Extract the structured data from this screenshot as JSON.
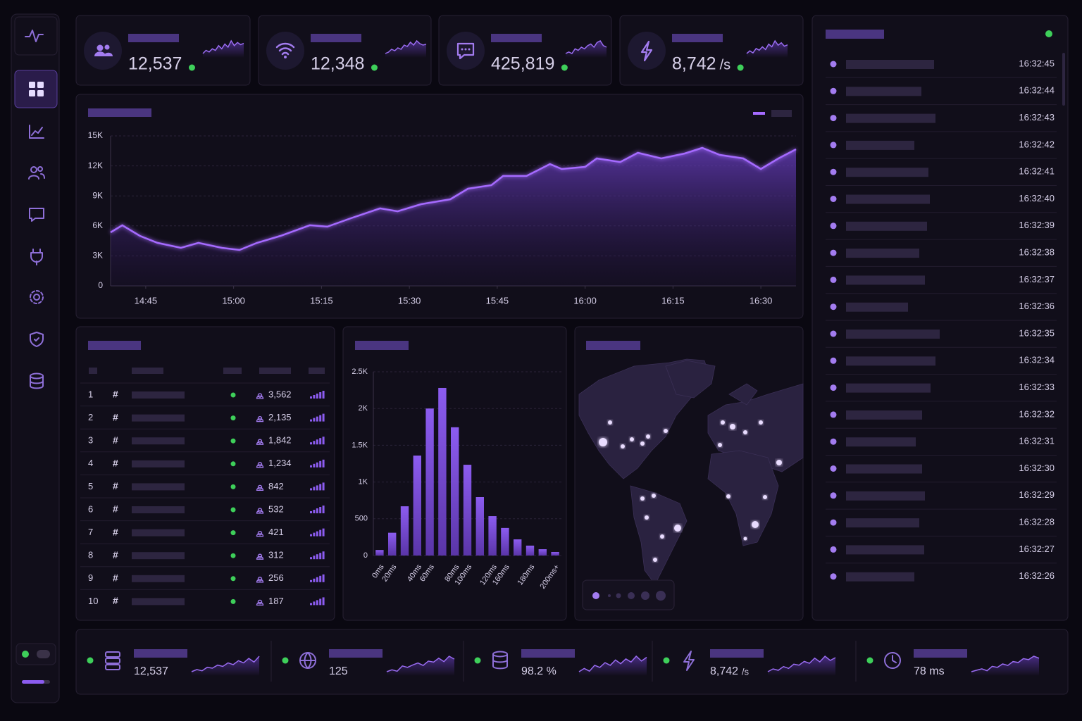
{
  "kpis": [
    {
      "value": "12,537",
      "spark": [
        4,
        5,
        4.5,
        5.5,
        5,
        6.5,
        5.5,
        7,
        6,
        8,
        6.5,
        7.5,
        6.8,
        7.2
      ]
    },
    {
      "value": "12,348",
      "spark": [
        3.5,
        4,
        5,
        4.5,
        5.5,
        5,
        6.5,
        6,
        7.5,
        6.5,
        8,
        7,
        6.5,
        6.8
      ]
    },
    {
      "value": "425,819",
      "spark": [
        4,
        4.5,
        4,
        5.5,
        5,
        6,
        5.5,
        6.5,
        7,
        6,
        7.5,
        8,
        6.5,
        6
      ]
    },
    {
      "value": "8,742",
      "unit": "/s",
      "spark": [
        4,
        4.8,
        4.2,
        5.5,
        5,
        6,
        5.2,
        6.8,
        6,
        7.8,
        6.5,
        7.2,
        6.2,
        6.6
      ]
    }
  ],
  "chart_data": [
    {
      "type": "area",
      "x": [
        879,
        881,
        884,
        887,
        891,
        894,
        898,
        901,
        904,
        908,
        913,
        916,
        920,
        925,
        928,
        932,
        937,
        940,
        944,
        946,
        950,
        954,
        956,
        960,
        962,
        966,
        969,
        973,
        977,
        980,
        983,
        987,
        990,
        993,
        996
      ],
      "series": [
        {
          "color": "#a56bff",
          "values": [
            5350,
            6060,
            5000,
            4300,
            3800,
            4300,
            3800,
            3590,
            4300,
            5000,
            6060,
            5920,
            6760,
            7750,
            7460,
            8170,
            8660,
            9720,
            10070,
            10990,
            10990,
            12180,
            11690,
            11900,
            12750,
            12390,
            13310,
            12750,
            13240,
            13800,
            13100,
            12750,
            11690,
            12750,
            13660
          ]
        }
      ],
      "xlim": [
        879,
        996
      ],
      "ylim": [
        0,
        15000
      ],
      "xticks": [
        {
          "value": 885,
          "label": "14:45"
        },
        {
          "value": 900,
          "label": "15:00"
        },
        {
          "value": 915,
          "label": "15:15"
        },
        {
          "value": 930,
          "label": "15:30"
        },
        {
          "value": 945,
          "label": "15:45"
        },
        {
          "value": 960,
          "label": "16:00"
        },
        {
          "value": 975,
          "label": "16:15"
        },
        {
          "value": 990,
          "label": "16:30"
        }
      ],
      "yticks": [
        0,
        {
          "value": 3000,
          "label": "3K"
        },
        {
          "value": 6000,
          "label": "6K"
        },
        {
          "value": 9000,
          "label": "9K"
        },
        {
          "value": 12000,
          "label": "12K"
        },
        {
          "value": 15000,
          "label": "15K"
        }
      ],
      "grid": true
    },
    {
      "type": "bar",
      "categories": [
        "0ms",
        "20ms",
        null,
        "40ms",
        "60ms",
        null,
        "80ms",
        "100ms",
        null,
        "120ms",
        "160ms",
        null,
        "180ms",
        null,
        "200ms+"
      ],
      "values": [
        75,
        310,
        670,
        1360,
        2000,
        2280,
        1745,
        1235,
        795,
        536,
        375,
        220,
        135,
        86,
        48
      ],
      "color": "#7d4fdb",
      "ylim": [
        0,
        2500
      ],
      "yticks": [
        0,
        500,
        {
          "value": 1000,
          "label": "1K"
        },
        {
          "value": 1500,
          "label": "1.5K"
        },
        {
          "value": 2000,
          "label": "2K"
        },
        {
          "value": 2500,
          "label": "2.5K"
        }
      ],
      "grid": true
    }
  ],
  "top_servers": {
    "rows": [
      {
        "rank": 1,
        "symbol": "#",
        "users": "3,562"
      },
      {
        "rank": 2,
        "symbol": "#",
        "users": "2,135"
      },
      {
        "rank": 3,
        "symbol": "#",
        "users": "1,842"
      },
      {
        "rank": 4,
        "symbol": "#",
        "users": "1,234"
      },
      {
        "rank": 5,
        "symbol": "#",
        "users": "842"
      },
      {
        "rank": 6,
        "symbol": "#",
        "users": "532"
      },
      {
        "rank": 7,
        "symbol": "#",
        "users": "421"
      },
      {
        "rank": 8,
        "symbol": "#",
        "users": "312"
      },
      {
        "rank": 9,
        "symbol": "#",
        "users": "256"
      },
      {
        "rank": 10,
        "symbol": "#",
        "users": "187"
      }
    ]
  },
  "log": {
    "times": [
      "16:32:45",
      "16:32:44",
      "16:32:43",
      "16:32:42",
      "16:32:41",
      "16:32:40",
      "16:32:39",
      "16:32:38",
      "16:32:37",
      "16:32:36",
      "16:32:35",
      "16:32:34",
      "16:32:33",
      "16:32:32",
      "16:32:31",
      "16:32:30",
      "16:32:29",
      "16:32:28",
      "16:32:27",
      "16:32:26"
    ]
  },
  "stats": [
    {
      "value": "12,537",
      "spark": [
        3,
        3.5,
        3.2,
        4,
        3.8,
        4.5,
        4.2,
        5,
        4.6,
        5.5,
        5,
        6,
        5.2,
        6.5
      ]
    },
    {
      "value": "125",
      "spark": [
        3,
        3.4,
        3.1,
        4.2,
        3.9,
        4.4,
        4.8,
        4.3,
        5.2,
        5,
        5.8,
        5.1,
        6.2,
        5.6
      ]
    },
    {
      "value": "98.2 %",
      "spark": [
        3.2,
        3.8,
        3.3,
        4.4,
        4,
        4.9,
        4.4,
        5.4,
        4.7,
        5.6,
        5,
        6.1,
        5.2,
        5.9
      ]
    },
    {
      "value": "8,742",
      "unit": "/s",
      "spark": [
        3,
        3.6,
        3.3,
        4.1,
        3.7,
        4.6,
        4.4,
        5.2,
        4.8,
        5.9,
        5.1,
        6.3,
        5.4,
        6
      ]
    },
    {
      "value": "78 ms",
      "spark": [
        3,
        3.3,
        3.6,
        3.2,
        4.1,
        3.9,
        4.6,
        4.3,
        5.1,
        4.9,
        5.7,
        5.5,
        6.2,
        5.8
      ]
    }
  ]
}
